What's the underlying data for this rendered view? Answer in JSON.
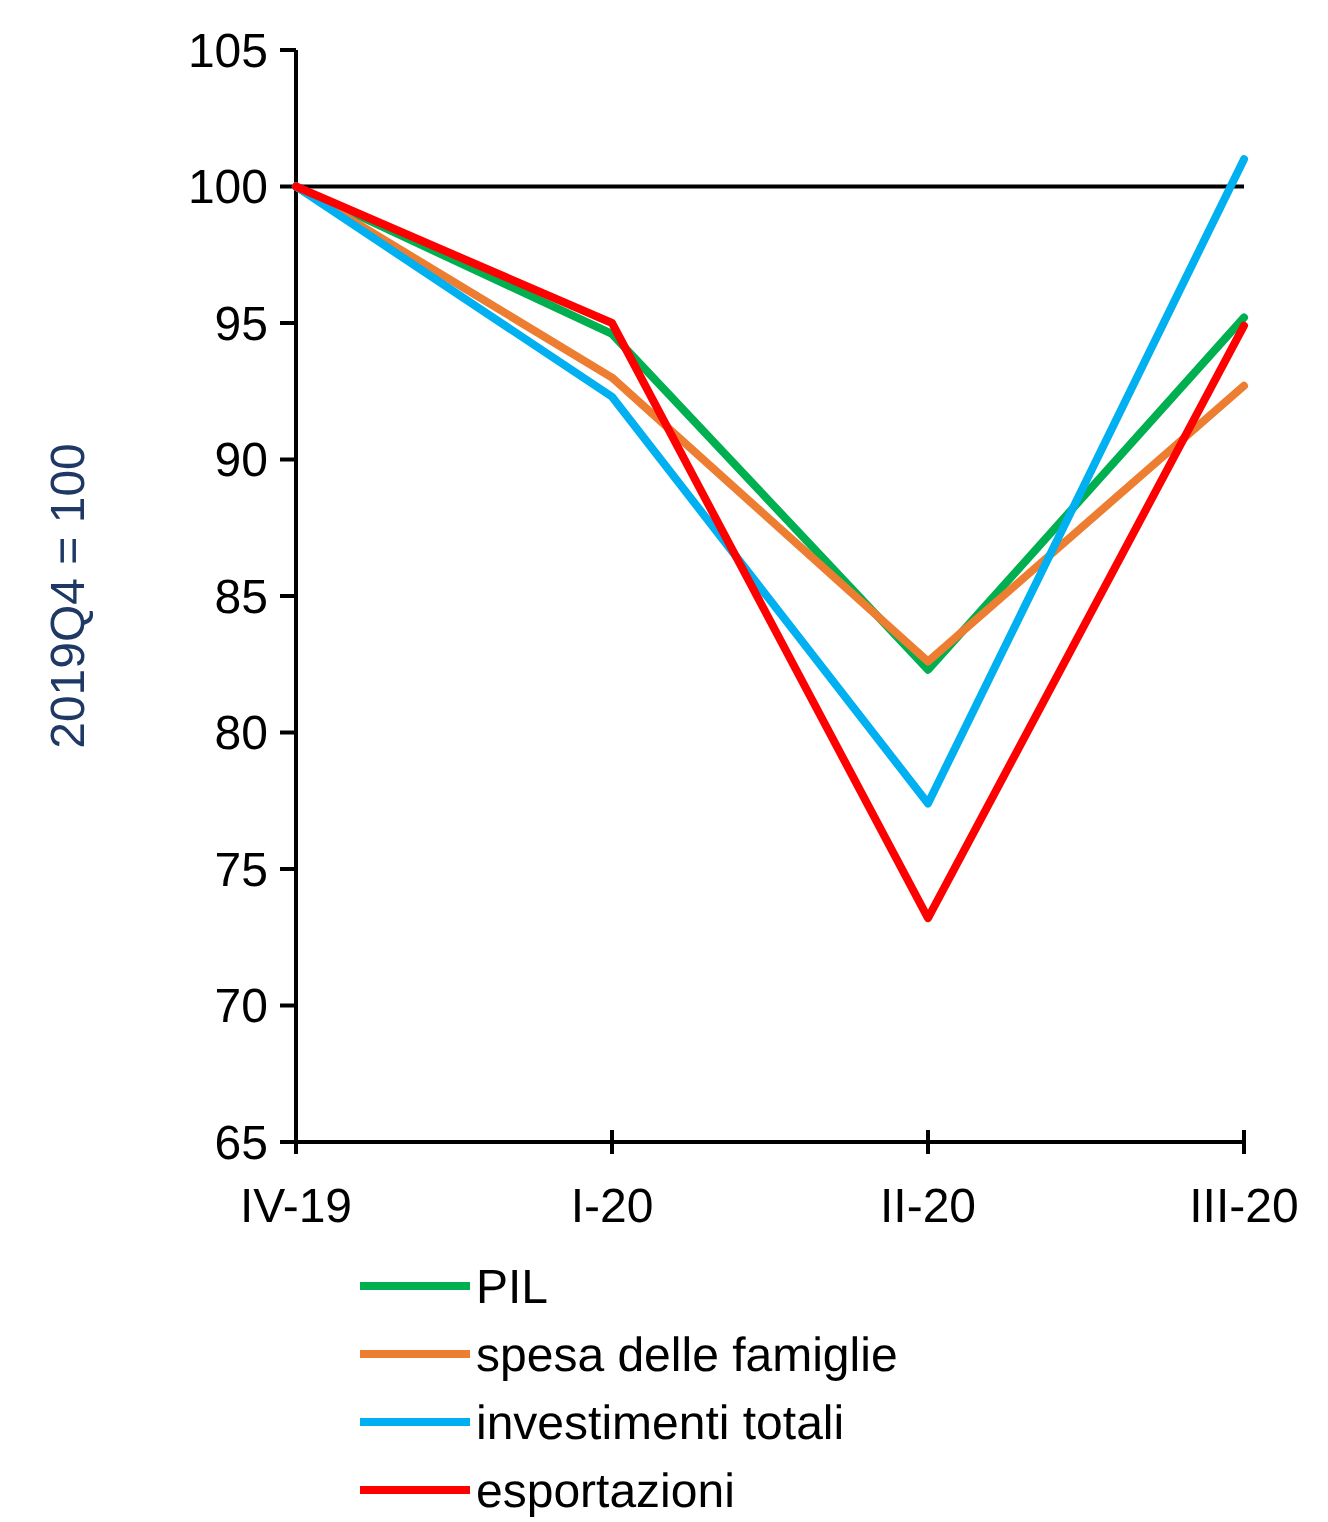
{
  "chart_data": {
    "type": "line",
    "ylabel": "2019Q4 = 100",
    "categories": [
      "IV-19",
      "I-20",
      "II-20",
      "III-20"
    ],
    "series": [
      {
        "name": "PIL",
        "color": "#00b050",
        "values": [
          100,
          94.6,
          82.3,
          95.2
        ]
      },
      {
        "name": "spesa delle famiglie",
        "color": "#ed7d31",
        "values": [
          100,
          93.0,
          82.6,
          92.7
        ]
      },
      {
        "name": "investimenti totali",
        "color": "#00b0f0",
        "values": [
          100,
          92.3,
          77.4,
          101.0
        ]
      },
      {
        "name": "esportazioni",
        "color": "#ff0000",
        "values": [
          100,
          95.0,
          73.2,
          94.9
        ]
      }
    ],
    "ylim": [
      65,
      105
    ],
    "yticks": [
      65,
      70,
      75,
      80,
      85,
      90,
      95,
      100,
      105
    ],
    "ref_lines": [
      {
        "axis": "y",
        "value": 100,
        "color": "#000000"
      }
    ],
    "legend": "bottom",
    "grid": false,
    "line_style": "solid"
  }
}
